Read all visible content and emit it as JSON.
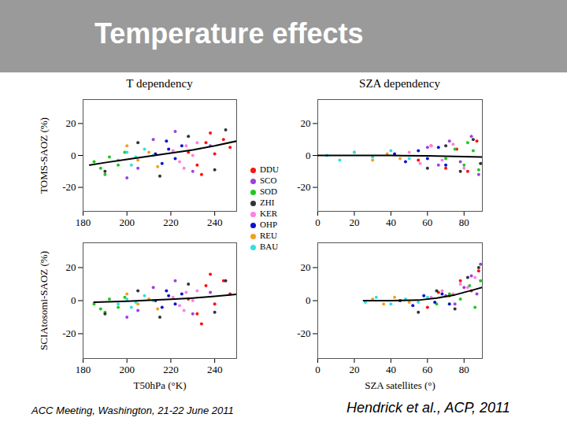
{
  "slide": {
    "title": "Temperature effects",
    "footer_left": "ACC Meeting, Washington, 21-22 June 2011",
    "footer_right": "Hendrick et al., ACP, 2011"
  },
  "chart_data": [
    {
      "type": "scatter",
      "title": "T dependency",
      "ylabel": "TOMS-SAOZ (%)",
      "xlim": [
        180,
        250
      ],
      "xticks": [
        180,
        200,
        220,
        240
      ],
      "ylim": [
        -35,
        35
      ],
      "yticks": [
        -20,
        0,
        20
      ],
      "series": [
        {
          "name": "DDU",
          "color": "#ff1010",
          "x": [
            228,
            232,
            236,
            240,
            244,
            247,
            234,
            238
          ],
          "values": [
            2,
            -6,
            8,
            1,
            10,
            5,
            -12,
            14
          ]
        },
        {
          "name": "SCO",
          "color": "#a040e0",
          "x": [
            205,
            212,
            222,
            230,
            238,
            200
          ],
          "values": [
            -8,
            10,
            15,
            -10,
            6,
            -14
          ]
        },
        {
          "name": "SOD",
          "color": "#20c820",
          "x": [
            185,
            188,
            192,
            196,
            199,
            190
          ],
          "values": [
            -4,
            -8,
            -1,
            -6,
            2,
            -12
          ]
        },
        {
          "name": "ZHI",
          "color": "#333333",
          "x": [
            190,
            205,
            215,
            228,
            240,
            245
          ],
          "values": [
            -10,
            8,
            -13,
            12,
            -9,
            16
          ]
        },
        {
          "name": "KER",
          "color": "#ff80e0",
          "x": [
            221,
            224,
            227,
            230,
            232,
            226
          ],
          "values": [
            3,
            -4,
            6,
            0,
            8,
            -8
          ]
        },
        {
          "name": "OHP",
          "color": "#1010d0",
          "x": [
            213,
            216,
            219,
            222,
            225,
            218
          ],
          "values": [
            1,
            -5,
            4,
            -2,
            6,
            9
          ]
        },
        {
          "name": "REU",
          "color": "#f0a020",
          "x": [
            200,
            205,
            210,
            214
          ],
          "values": [
            6,
            -3,
            2,
            -7
          ]
        },
        {
          "name": "BAU",
          "color": "#30e0e0",
          "x": [
            196,
            200,
            204,
            208,
            212,
            202
          ],
          "values": [
            -3,
            2,
            -1,
            4,
            0,
            -6
          ]
        },
        {
          "type": "line",
          "color": "#000000",
          "x": [
            183,
            190,
            200,
            210,
            220,
            230,
            240,
            250
          ],
          "values": [
            -6,
            -4.5,
            -2.5,
            -0.5,
            1.5,
            3.5,
            6,
            9
          ]
        }
      ]
    },
    {
      "type": "scatter",
      "title": "SZA dependency",
      "xlim": [
        0,
        90
      ],
      "xticks": [
        0,
        20,
        40,
        60,
        80
      ],
      "ylim": [
        -35,
        35
      ],
      "yticks": [
        -20,
        0,
        20
      ],
      "series": [
        {
          "name": "DDU",
          "color": "#ff1010",
          "x": [
            55,
            62,
            70,
            76,
            82,
            87
          ],
          "values": [
            -3,
            6,
            -8,
            4,
            -10,
            9
          ]
        },
        {
          "name": "SCO",
          "color": "#a040e0",
          "x": [
            60,
            66,
            72,
            78,
            84,
            88
          ],
          "values": [
            5,
            -6,
            9,
            -4,
            12,
            -12
          ]
        },
        {
          "name": "SOD",
          "color": "#20c820",
          "x": [
            70,
            75,
            80,
            85,
            88,
            82
          ],
          "values": [
            -2,
            4,
            -6,
            3,
            -9,
            8
          ]
        },
        {
          "name": "ZHI",
          "color": "#333333",
          "x": [
            60,
            70,
            78,
            85,
            89
          ],
          "values": [
            -8,
            6,
            -10,
            10,
            -5
          ]
        },
        {
          "name": "KER",
          "color": "#ff80e0",
          "x": [
            50,
            56,
            62,
            68,
            74,
            80
          ],
          "values": [
            2,
            -5,
            6,
            -3,
            7,
            -8
          ]
        },
        {
          "name": "OHP",
          "color": "#1010d0",
          "x": [
            42,
            48,
            55,
            60,
            66,
            70
          ],
          "values": [
            1,
            -4,
            3,
            -2,
            5,
            -6
          ]
        },
        {
          "name": "REU",
          "color": "#f0a020",
          "x": [
            20,
            30,
            38,
            45
          ],
          "values": [
            2,
            -3,
            1,
            -2
          ]
        },
        {
          "name": "BAU",
          "color": "#30e0e0",
          "x": [
            5,
            12,
            20,
            30,
            40,
            50
          ],
          "values": [
            0,
            -3,
            2,
            -1,
            3,
            -2
          ]
        },
        {
          "type": "line",
          "color": "#000000",
          "x": [
            0,
            20,
            40,
            60,
            80,
            90
          ],
          "values": [
            0,
            0,
            0,
            -0.3,
            -0.8,
            -1
          ]
        }
      ]
    },
    {
      "type": "scatter",
      "ylabel": "SCIAtosomi-SAOZ (%)",
      "xlabel": "T50hPa (°K)",
      "xlim": [
        180,
        250
      ],
      "xticks": [
        180,
        200,
        220,
        240
      ],
      "ylim": [
        -35,
        35
      ],
      "yticks": [
        -20,
        0,
        20
      ],
      "series": [
        {
          "name": "DDU",
          "color": "#ff1010",
          "x": [
            228,
            232,
            236,
            240,
            244,
            247,
            234,
            238
          ],
          "values": [
            1,
            -8,
            9,
            -2,
            12,
            4,
            -14,
            16
          ]
        },
        {
          "name": "SCO",
          "color": "#a040e0",
          "x": [
            205,
            212,
            222,
            230,
            238,
            200
          ],
          "values": [
            -6,
            8,
            12,
            -8,
            5,
            -10
          ]
        },
        {
          "name": "SOD",
          "color": "#20c820",
          "x": [
            185,
            188,
            192,
            196,
            199,
            190
          ],
          "values": [
            -2,
            -5,
            1,
            -4,
            2,
            -7
          ]
        },
        {
          "name": "ZHI",
          "color": "#333333",
          "x": [
            190,
            205,
            215,
            228,
            240,
            245
          ],
          "values": [
            -8,
            6,
            -10,
            10,
            -7,
            12
          ]
        },
        {
          "name": "KER",
          "color": "#ff80e0",
          "x": [
            221,
            224,
            227,
            230,
            232,
            226
          ],
          "values": [
            2,
            -3,
            5,
            0,
            6,
            -6
          ]
        },
        {
          "name": "OHP",
          "color": "#1010d0",
          "x": [
            213,
            216,
            219,
            222,
            225,
            218
          ],
          "values": [
            0,
            -4,
            3,
            -2,
            4,
            6
          ]
        },
        {
          "name": "REU",
          "color": "#f0a020",
          "x": [
            200,
            205,
            210,
            214
          ],
          "values": [
            4,
            -2,
            1,
            -5
          ]
        },
        {
          "name": "BAU",
          "color": "#30e0e0",
          "x": [
            196,
            200,
            204,
            208,
            212,
            202
          ],
          "values": [
            -2,
            1,
            -1,
            3,
            0,
            -4
          ]
        },
        {
          "type": "line",
          "color": "#000000",
          "x": [
            185,
            200,
            210,
            220,
            230,
            240,
            250
          ],
          "values": [
            -1,
            -0.3,
            0.2,
            0.8,
            1.6,
            2.6,
            3.8
          ]
        }
      ]
    },
    {
      "type": "scatter",
      "xlabel": "SZA satellites (°)",
      "xlim": [
        0,
        90
      ],
      "xticks": [
        0,
        20,
        40,
        60,
        80
      ],
      "ylim": [
        -35,
        35
      ],
      "yticks": [
        -20,
        0,
        20
      ],
      "series": [
        {
          "name": "DDU",
          "color": "#ff1010",
          "x": [
            60,
            66,
            72,
            78,
            84,
            88
          ],
          "values": [
            -4,
            5,
            3,
            12,
            6,
            18
          ]
        },
        {
          "name": "SCO",
          "color": "#a040e0",
          "x": [
            70,
            75,
            80,
            84,
            87,
            89
          ],
          "values": [
            3,
            -2,
            8,
            15,
            4,
            22
          ]
        },
        {
          "name": "SOD",
          "color": "#20c820",
          "x": [
            65,
            72,
            78,
            83,
            86,
            89
          ],
          "values": [
            -2,
            4,
            1,
            9,
            -4,
            12
          ]
        },
        {
          "name": "ZHI",
          "color": "#333333",
          "x": [
            55,
            65,
            75,
            82,
            88
          ],
          "values": [
            -7,
            6,
            -5,
            14,
            20
          ]
        },
        {
          "name": "KER",
          "color": "#ff80e0",
          "x": [
            62,
            68,
            74,
            78,
            82,
            86
          ],
          "values": [
            2,
            6,
            4,
            10,
            8,
            14
          ]
        },
        {
          "name": "OHP",
          "color": "#1010d0",
          "x": [
            45,
            52,
            58,
            64,
            68,
            72
          ],
          "values": [
            0,
            -3,
            3,
            -1,
            4,
            -2
          ]
        },
        {
          "name": "REU",
          "color": "#f0a020",
          "x": [
            30,
            36,
            42,
            50
          ],
          "values": [
            1,
            -2,
            2,
            -1
          ]
        },
        {
          "name": "BAU",
          "color": "#30e0e0",
          "x": [
            26,
            32,
            40,
            48,
            55,
            60
          ],
          "values": [
            -1,
            2,
            -2,
            1,
            -1,
            2
          ]
        },
        {
          "type": "line",
          "color": "#000000",
          "x": [
            25,
            40,
            55,
            65,
            75,
            85,
            90
          ],
          "values": [
            0,
            0,
            0.3,
            1.5,
            3.5,
            6.5,
            8
          ]
        }
      ]
    }
  ]
}
